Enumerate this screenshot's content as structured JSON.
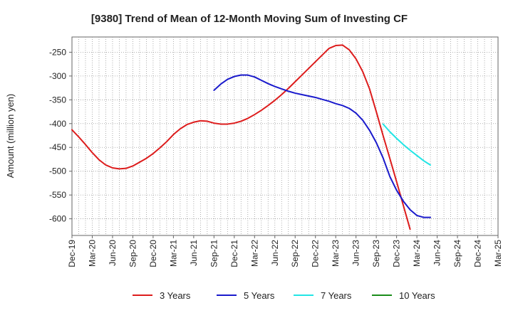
{
  "chart_data": {
    "type": "line",
    "title": "[9380]  Trend of Mean of 12-Month Moving Sum of Investing CF",
    "ylabel": "Amount (million yen)",
    "xlabel": "",
    "ylim": [
      -635,
      -218
    ],
    "yticks": [
      -250,
      -300,
      -350,
      -400,
      -450,
      -500,
      -550,
      -600
    ],
    "x_start": "Dec-19",
    "x_end": "Mar-25",
    "xtick_labels": [
      "Dec-19",
      "Mar-20",
      "Jun-20",
      "Sep-20",
      "Dec-20",
      "Mar-21",
      "Jun-21",
      "Sep-21",
      "Dec-21",
      "Mar-22",
      "Jun-22",
      "Sep-22",
      "Dec-22",
      "Mar-23",
      "Jun-23",
      "Sep-23",
      "Dec-23",
      "Mar-24",
      "Jun-24",
      "Sep-24",
      "Dec-24",
      "Mar-25"
    ],
    "grid": true,
    "legend_position": "bottom",
    "series": [
      {
        "name": "3 Years",
        "color": "#dd1c1c",
        "start_index": 0,
        "values": [
          -413,
          -428,
          -444,
          -461,
          -476,
          -487,
          -493,
          -495,
          -494,
          -489,
          -481,
          -473,
          -463,
          -451,
          -438,
          -423,
          -411,
          -402,
          -397,
          -394,
          -395,
          -399,
          -401,
          -401,
          -399,
          -395,
          -389,
          -381,
          -372,
          -362,
          -351,
          -339,
          -326,
          -312,
          -298,
          -284,
          -270,
          -256,
          -242,
          -236,
          -235,
          -245,
          -264,
          -291,
          -327,
          -375,
          -425,
          -473,
          -522,
          -572,
          -622
        ]
      },
      {
        "name": "5 Years",
        "color": "#1a1acc",
        "start_index": 21,
        "values": [
          -330,
          -317,
          -307,
          -301,
          -298,
          -298,
          -302,
          -309,
          -316,
          -322,
          -327,
          -332,
          -336,
          -339,
          -342,
          -345,
          -349,
          -353,
          -358,
          -362,
          -368,
          -378,
          -393,
          -414,
          -440,
          -472,
          -511,
          -540,
          -563,
          -581,
          -593,
          -597,
          -597
        ]
      },
      {
        "name": "7 Years",
        "color": "#22e5e5",
        "start_index": 46,
        "values": [
          -401,
          -417,
          -431,
          -444,
          -456,
          -467,
          -478,
          -487
        ]
      },
      {
        "name": "10 Years",
        "color": "#1a8c1a",
        "start_index": 0,
        "values": []
      }
    ]
  }
}
